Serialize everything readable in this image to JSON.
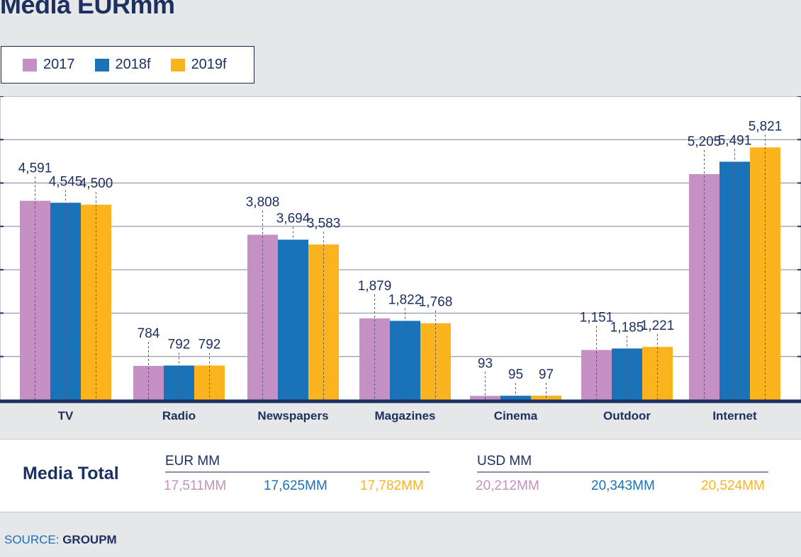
{
  "page": {
    "title": "Media EURmm"
  },
  "colors": {
    "2017": "#c590c3",
    "2018f": "#1a72b9",
    "2019f": "#fbb31e",
    "text": "#1c3160"
  },
  "legend": [
    {
      "label": "2017",
      "color": "#c590c3"
    },
    {
      "label": "2018f",
      "color": "#1a72b9"
    },
    {
      "label": "2019f",
      "color": "#fbb31e"
    }
  ],
  "chart_data": {
    "type": "bar",
    "title": "Media EURmm",
    "categories": [
      "TV",
      "Radio",
      "Newspapers",
      "Magazines",
      "Cinema",
      "Outdoor",
      "Internet"
    ],
    "series": [
      {
        "name": "2017",
        "color": "#c590c3",
        "values": [
          4591,
          784,
          3808,
          1879,
          93,
          1151,
          5205
        ]
      },
      {
        "name": "2018f",
        "color": "#1a72b9",
        "values": [
          4545,
          792,
          3694,
          1822,
          95,
          1185,
          5491
        ]
      },
      {
        "name": "2019f",
        "color": "#fbb31e",
        "values": [
          4500,
          792,
          3583,
          1768,
          97,
          1221,
          5821
        ]
      }
    ],
    "data_labels": [
      [
        "4,591",
        "784",
        "3,808",
        "1,879",
        "93",
        "1,151",
        "5,205"
      ],
      [
        "4,545",
        "792",
        "3,694",
        "1,822",
        "95",
        "1,185",
        "5,491"
      ],
      [
        "4,500",
        "792",
        "3,583",
        "1,768",
        "97",
        "1,221",
        "5,821"
      ]
    ],
    "ylim": [
      0,
      7000
    ],
    "grid": true,
    "legend_position": "top-left",
    "xlabel": "",
    "ylabel": ""
  },
  "totals": {
    "heading": "Media Total",
    "eur": {
      "title": "EUR MM",
      "values": [
        "17,511MM",
        "17,625MM",
        "17,782MM"
      ]
    },
    "usd": {
      "title": "USD MM",
      "values": [
        "20,212MM",
        "20,343MM",
        "20,524MM"
      ]
    }
  },
  "source": {
    "label": "SOURCE:",
    "value": "GROUPM"
  }
}
